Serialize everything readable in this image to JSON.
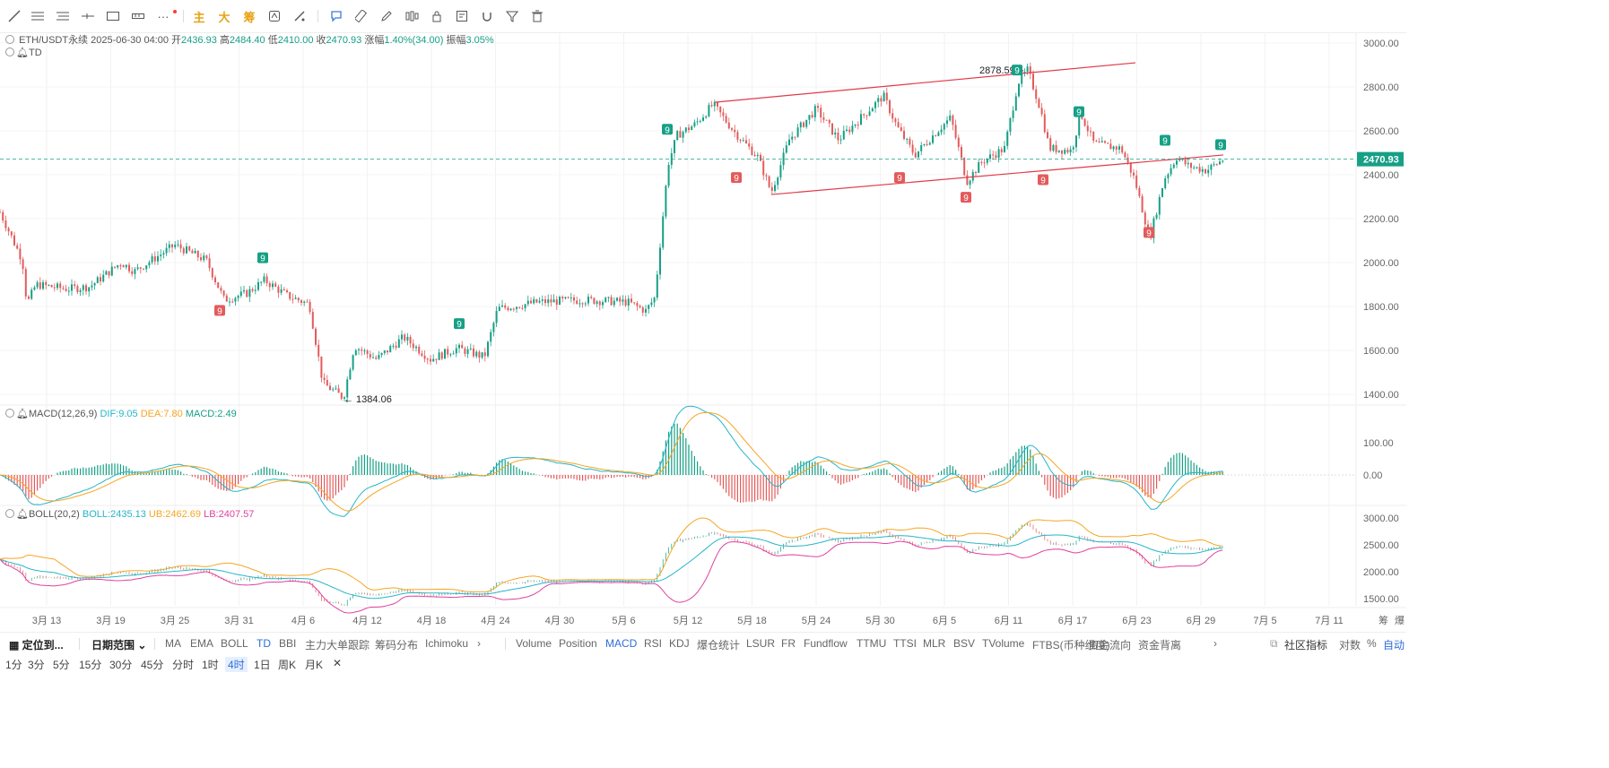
{
  "toolbar": {
    "tools": [
      "line-tool-icon",
      "multi-line-tool-icon",
      "parallel-channel-icon",
      "horizontal-ray-icon",
      "rectangle-icon",
      "measure-icon",
      "more-tools-icon"
    ],
    "text_tools": [
      "主",
      "大",
      "筹"
    ],
    "right_tools": [
      "cycle-icon",
      "brush-icon",
      "callout-icon",
      "ruler-icon",
      "pencil-icon",
      "candlestick-icon",
      "lock-icon",
      "edit-note-icon",
      "magnet-icon",
      "filter-icon",
      "trash-icon"
    ]
  },
  "ohlc": {
    "symbol": "ETH/USDT永续",
    "time": "2025-06-30 04:00",
    "open_label": "开",
    "open": "2436.93",
    "high_label": "高",
    "high": "2484.40",
    "low_label": "低",
    "low": "2410.00",
    "close_label": "收",
    "close": "2470.93",
    "change_label": "涨幅",
    "change": "1.40%(34.00)",
    "amp_label": "振幅",
    "amp": "3.05%"
  },
  "td_label": "TD",
  "price_axis": [
    "3000.00",
    "2800.00",
    "2600.00",
    "2400.00",
    "2200.00",
    "2000.00",
    "1800.00",
    "1600.00",
    "1400.00"
  ],
  "current_price": "2470.93",
  "annotations": {
    "high": "2878.59",
    "low": "← 1384.06"
  },
  "macd": {
    "name": "MACD(12,26,9)",
    "dif": "DIF:9.05",
    "dea": "DEA:7.80",
    "macd": "MACD:2.49",
    "axis": [
      "100.00",
      "0.00"
    ]
  },
  "boll": {
    "name": "BOLL(20,2)",
    "mid": "BOLL:2435.13",
    "ub": "UB:2462.69",
    "lb": "LB:2407.57",
    "axis": [
      "3000.00",
      "2500.00",
      "2000.00",
      "1500.00"
    ]
  },
  "date_axis": [
    "3月 13",
    "3月 19",
    "3月 25",
    "3月 31",
    "4月 6",
    "4月 12",
    "4月 18",
    "4月 24",
    "4月 30",
    "5月 6",
    "5月 12",
    "5月 18",
    "5月 24",
    "5月 30",
    "6月 5",
    "6月 11",
    "6月 17",
    "6月 23",
    "6月 29",
    "7月 5",
    "7月 11"
  ],
  "date_axis_right": [
    "筹",
    "爆"
  ],
  "indicator_bar": {
    "locate": "定位到...",
    "date_range": "日期范围",
    "main": [
      "MA",
      "EMA",
      "BOLL",
      "TD",
      "BBI",
      "主力大单跟踪",
      "筹码分布",
      "Ichimoku"
    ],
    "sub": [
      "Volume",
      "Position",
      "MACD",
      "RSI",
      "KDJ",
      "爆仓统计",
      "LSUR",
      "FR",
      "Fundflow",
      "TTMU",
      "TTSI",
      "MLR",
      "BSV",
      "TVolume",
      "FTBS(币种维度)",
      "资金流向",
      "资金背离"
    ],
    "community": "社区指标",
    "log": "对数",
    "pct": "%",
    "auto": "自动"
  },
  "intervals": [
    "1分",
    "3分",
    "5分",
    "15分",
    "30分",
    "45分",
    "分时",
    "1时",
    "4时",
    "1日",
    "周K",
    "月K"
  ],
  "active_interval": "4时",
  "colors": {
    "up": "#16a086",
    "down": "#e35b5b",
    "accent": "#2f6fd6",
    "channel": "#e03a48",
    "dif": "#26b5c8",
    "dea": "#f5a623",
    "lb": "#e040a0"
  }
}
